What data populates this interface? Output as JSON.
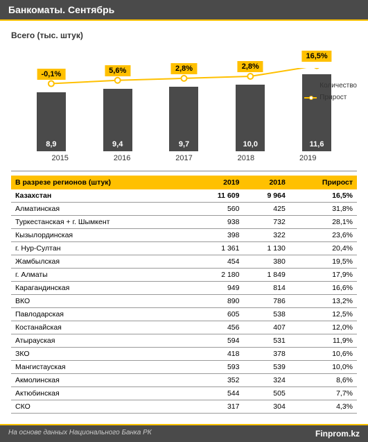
{
  "header": {
    "title": "Банкоматы. Сентябрь"
  },
  "chart": {
    "title": "Всего (тыс. штук)",
    "type": "bar+line",
    "years": [
      "2015",
      "2016",
      "2017",
      "2018",
      "2019"
    ],
    "values": [
      8.9,
      9.4,
      9.7,
      10.0,
      11.6
    ],
    "value_labels": [
      "8,9",
      "9,4",
      "9,7",
      "10,0",
      "11,6"
    ],
    "growth_labels": [
      "-0,1%",
      "5,6%",
      "2,8%",
      "2,8%",
      "16,5%"
    ],
    "bar_color": "#4a4a4a",
    "accent_color": "#ffc000",
    "marker_fill": "#ffffff",
    "ymax": 12.5,
    "legend": {
      "count": "Количество",
      "growth": "Прирост"
    }
  },
  "table": {
    "headers": {
      "region": "В разрезе регионов (штук)",
      "y2019": "2019",
      "y2018": "2018",
      "growth": "Прирост"
    },
    "total": {
      "name": "Казахстан",
      "y2019": "11 609",
      "y2018": "9 964",
      "growth": "16,5%"
    },
    "rows": [
      {
        "name": "Алматинская",
        "y2019": "560",
        "y2018": "425",
        "growth": "31,8%"
      },
      {
        "name": "Туркестанская + г. Шымкент",
        "y2019": "938",
        "y2018": "732",
        "growth": "28,1%"
      },
      {
        "name": "Кызылординская",
        "y2019": "398",
        "y2018": "322",
        "growth": "23,6%"
      },
      {
        "name": "г. Нур-Султан",
        "y2019": "1 361",
        "y2018": "1 130",
        "growth": "20,4%"
      },
      {
        "name": "Жамбылская",
        "y2019": "454",
        "y2018": "380",
        "growth": "19,5%"
      },
      {
        "name": "г. Алматы",
        "y2019": "2 180",
        "y2018": "1 849",
        "growth": "17,9%"
      },
      {
        "name": "Карагандинская",
        "y2019": "949",
        "y2018": "814",
        "growth": "16,6%"
      },
      {
        "name": "ВКО",
        "y2019": "890",
        "y2018": "786",
        "growth": "13,2%"
      },
      {
        "name": "Павлодарская",
        "y2019": "605",
        "y2018": "538",
        "growth": "12,5%"
      },
      {
        "name": "Костанайская",
        "y2019": "456",
        "y2018": "407",
        "growth": "12,0%"
      },
      {
        "name": "Атырауская",
        "y2019": "594",
        "y2018": "531",
        "growth": "11,9%"
      },
      {
        "name": "ЗКО",
        "y2019": "418",
        "y2018": "378",
        "growth": "10,6%"
      },
      {
        "name": "Мангистауская",
        "y2019": "593",
        "y2018": "539",
        "growth": "10,0%"
      },
      {
        "name": "Акмолинская",
        "y2019": "352",
        "y2018": "324",
        "growth": "8,6%"
      },
      {
        "name": "Актюбинская",
        "y2019": "544",
        "y2018": "505",
        "growth": "7,7%"
      },
      {
        "name": "СКО",
        "y2019": "317",
        "y2018": "304",
        "growth": "4,3%"
      }
    ]
  },
  "footer": {
    "source": "На основе данных Национального Банка РК",
    "brand": "Finprom.kz"
  }
}
